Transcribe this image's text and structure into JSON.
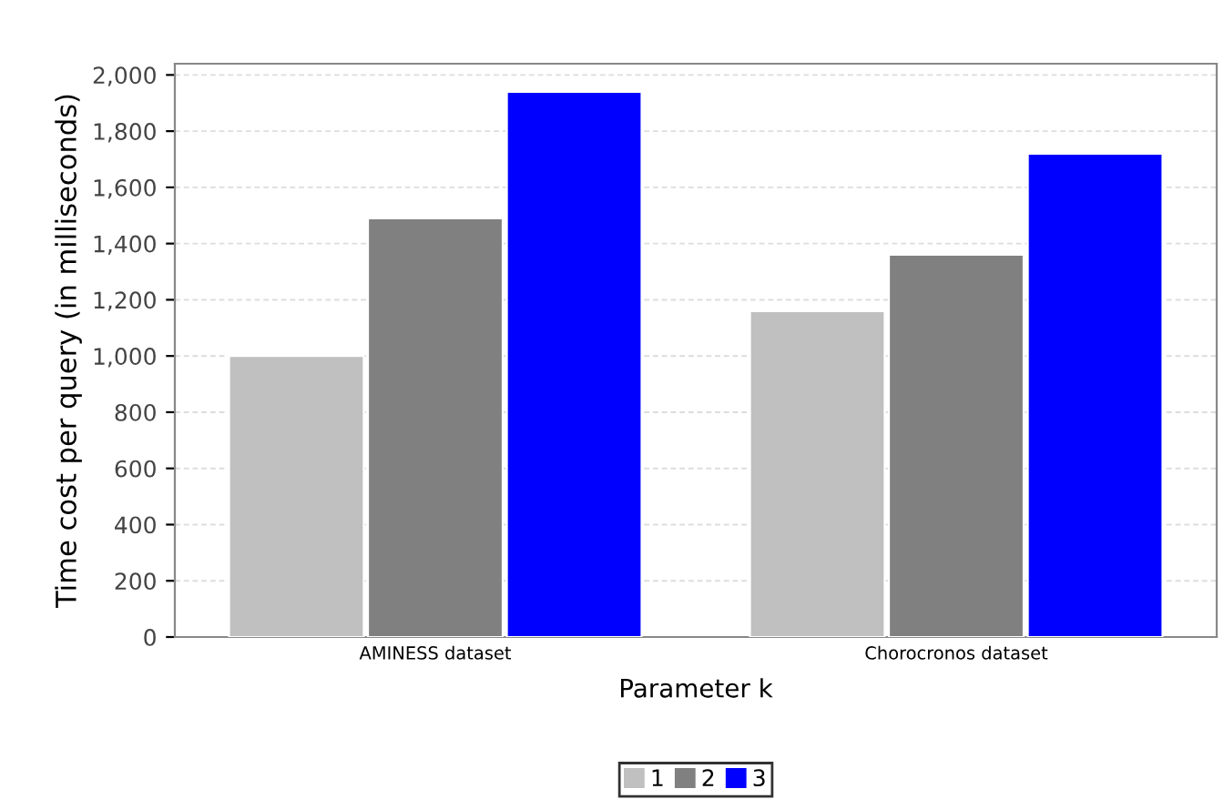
{
  "chart_data": {
    "type": "bar",
    "xlabel": "Parameter k",
    "ylabel": "Time cost per query (in milliseconds)",
    "categories": [
      "AMINESS dataset",
      "Chorocronos dataset"
    ],
    "series": [
      {
        "name": "1",
        "color": "#c0c0c0",
        "values": [
          1000,
          1160
        ]
      },
      {
        "name": "2",
        "color": "#808080",
        "values": [
          1490,
          1360
        ]
      },
      {
        "name": "3",
        "color": "#0000ff",
        "values": [
          1940,
          1720
        ]
      }
    ],
    "ylim": [
      0,
      2040
    ],
    "yticks": [
      {
        "value": 0,
        "label": "0"
      },
      {
        "value": 200,
        "label": "200"
      },
      {
        "value": 400,
        "label": "400"
      },
      {
        "value": 600,
        "label": "600"
      },
      {
        "value": 800,
        "label": "800"
      },
      {
        "value": 1000,
        "label": "1,000"
      },
      {
        "value": 1200,
        "label": "1,200"
      },
      {
        "value": 1400,
        "label": "1,400"
      },
      {
        "value": 1600,
        "label": "1,600"
      },
      {
        "value": 1800,
        "label": "1,800"
      },
      {
        "value": 2000,
        "label": "2,000"
      }
    ],
    "grid": "y",
    "legend": "bottom"
  }
}
